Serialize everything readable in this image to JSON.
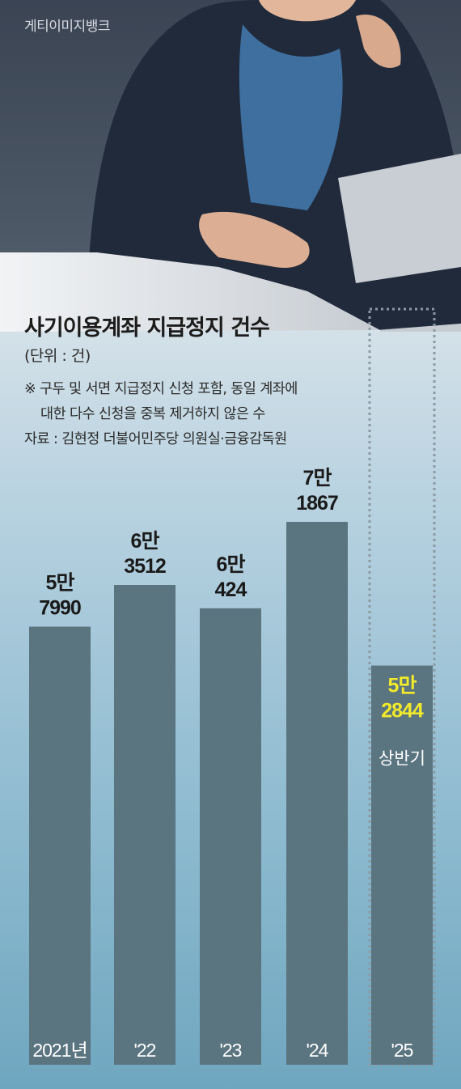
{
  "header": {
    "photo_credit": "게티이미지뱅크",
    "title": "사기이용계좌 지급정지 건수",
    "unit": "(단위 : 건)",
    "note_line1": "※ 구두 및 서면 지급정지 신청 포함, 동일 계좌에",
    "note_line2": "대한 다수 신청을 중복 제거하지 않은 수",
    "source": "자료 : 김현정 더불어민주당 의원실·금융감독원"
  },
  "colors": {
    "bar": "#5a7480",
    "highlight_text": "#f2ea2a",
    "dotted_border": "#8b9aa3"
  },
  "chart_data": {
    "type": "bar",
    "categories": [
      "2021년",
      "'22",
      "'23",
      "'24",
      "'25"
    ],
    "values": [
      57990,
      63512,
      60424,
      71867,
      52844
    ],
    "value_labels": [
      [
        "5만",
        "7990"
      ],
      [
        "6만",
        "3512"
      ],
      [
        "6만",
        "424"
      ],
      [
        "7만",
        "1867"
      ],
      [
        "5만",
        "2844"
      ]
    ],
    "partial_label": "상반기",
    "partial_index": 4,
    "title": "사기이용계좌 지급정지 건수",
    "ylabel": "",
    "ylim": [
      0,
      71867
    ]
  }
}
